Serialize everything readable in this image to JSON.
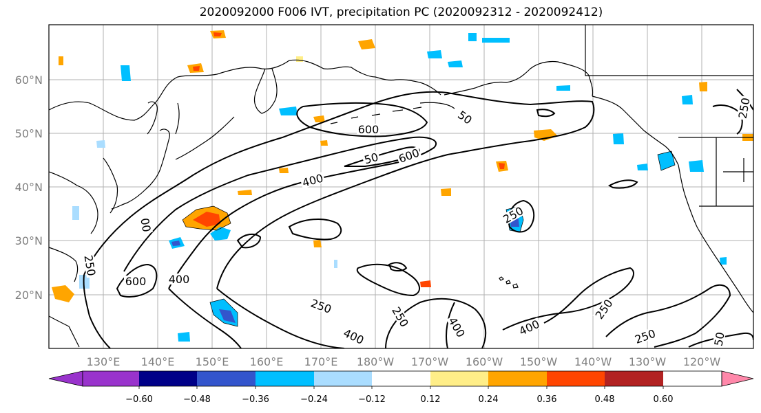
{
  "title": "2020092000 F006 IVT, precipitation PC (2020092312 - 2020092412)",
  "map": {
    "lat_labels": [
      "20°N",
      "30°N",
      "40°N",
      "50°N",
      "60°N"
    ],
    "lon_labels": [
      "130°E",
      "140°E",
      "150°E",
      "160°E",
      "170°E",
      "180°W",
      "170°W",
      "160°W",
      "150°W",
      "140°W",
      "130°W",
      "120°W"
    ],
    "contour_labels": [
      "600",
      "600",
      "600",
      "400",
      "400",
      "400",
      "400",
      "400",
      "250",
      "250",
      "250",
      "250",
      "250",
      "250",
      "250",
      "50",
      "50",
      "00",
      "50"
    ]
  },
  "colorbar": {
    "colors": [
      "#9933cc",
      "#000088",
      "#3355cc",
      "#00bfff",
      "#aaddff",
      "#ffffff",
      "#ffee88",
      "#ffa500",
      "#ff4500",
      "#b22222",
      "#ff88aa"
    ],
    "tick_labels": [
      "−0.60",
      "−0.48",
      "−0.36",
      "−0.24",
      "−0.12",
      "0.12",
      "0.24",
      "0.36",
      "0.48",
      "0.60"
    ]
  }
}
